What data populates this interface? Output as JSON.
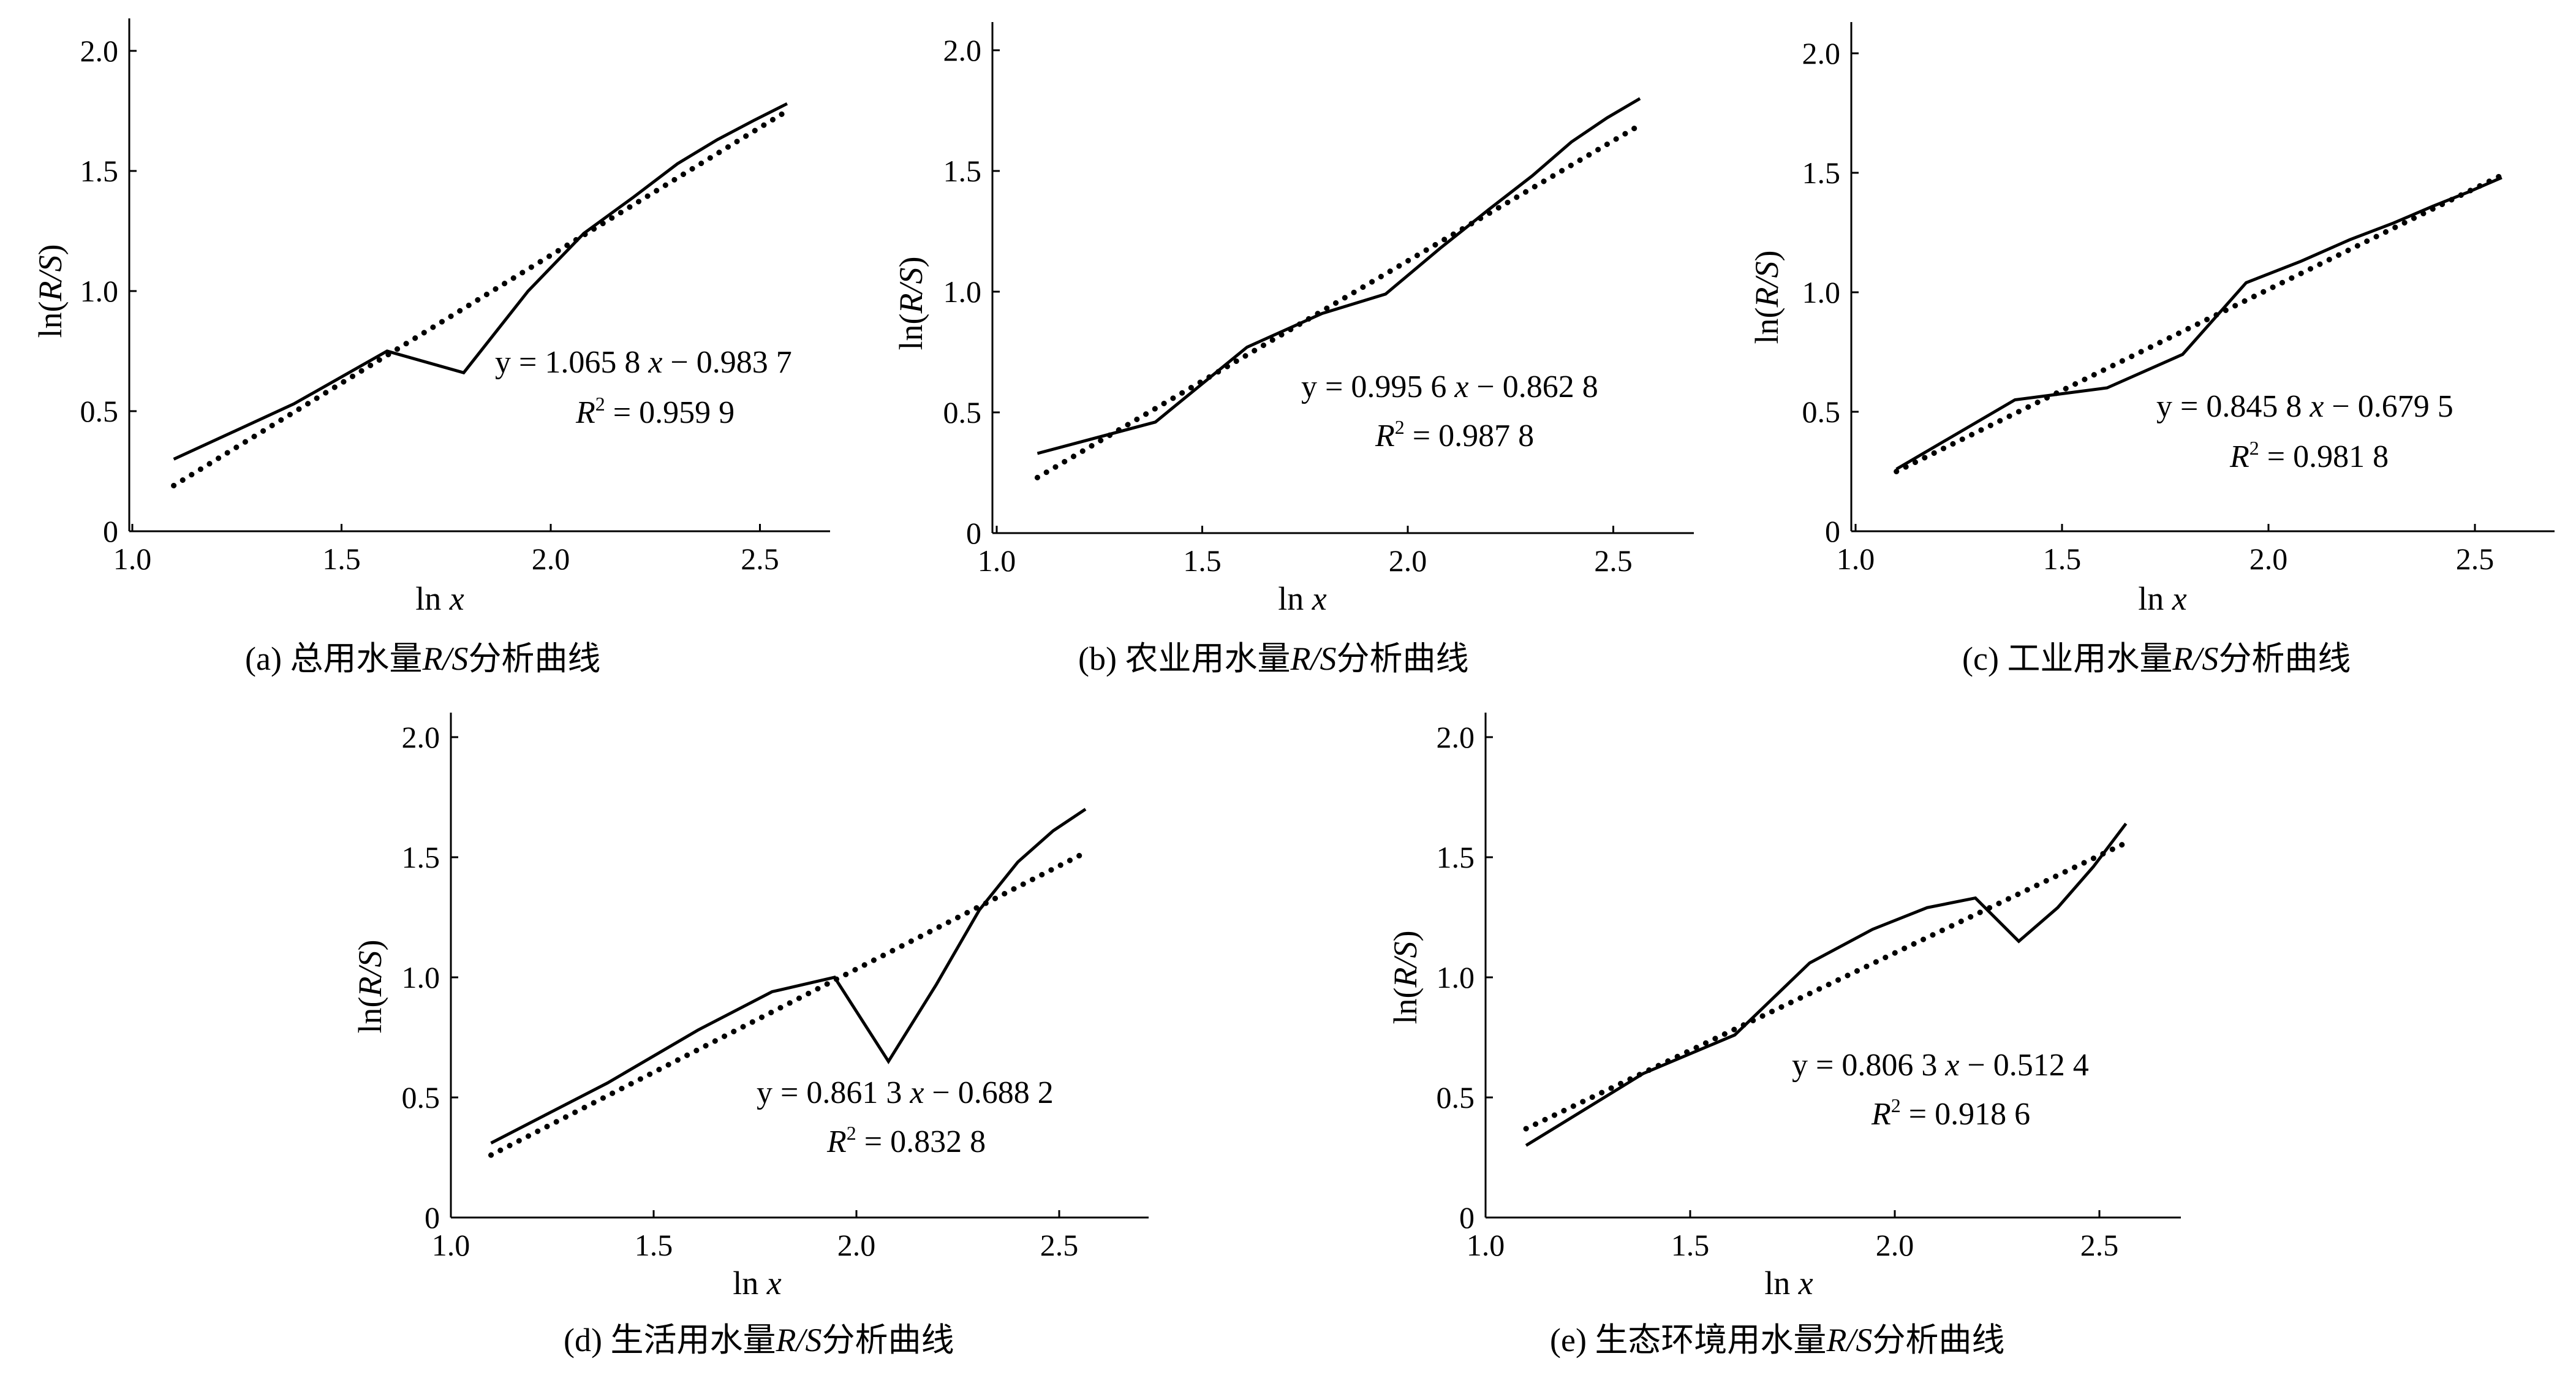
{
  "chart_data": [
    {
      "id": "a",
      "type": "line",
      "caption_prefix": "(a) ",
      "caption_main": "总用水量",
      "caption_italic": "R/S",
      "caption_suffix": "分析曲线",
      "xlabel_prefix": "ln ",
      "xlabel_var": "x",
      "ylabel_prefix": "ln(",
      "ylabel_var": "R/S",
      "ylabel_suffix": ")",
      "xlim": [
        1.0,
        2.7
      ],
      "ylim": [
        0,
        2.1
      ],
      "xticks": [
        {
          "v": 1.0,
          "label": "1.0"
        },
        {
          "v": 1.5,
          "label": "1.5"
        },
        {
          "v": 2.0,
          "label": "2.0"
        },
        {
          "v": 2.5,
          "label": "2.5"
        }
      ],
      "yticks": [
        {
          "v": 0,
          "label": "0"
        },
        {
          "v": 0.5,
          "label": "0.5"
        },
        {
          "v": 1.0,
          "label": "1.0"
        },
        {
          "v": 1.5,
          "label": "1.5"
        },
        {
          "v": 2.0,
          "label": "2.0"
        }
      ],
      "series": [
        {
          "style": "solid",
          "points": [
            [
              1.099,
              0.3
            ],
            [
              1.386,
              0.53
            ],
            [
              1.609,
              0.75
            ],
            [
              1.792,
              0.66
            ],
            [
              1.946,
              1.0
            ],
            [
              2.079,
              1.24
            ],
            [
              2.197,
              1.39
            ],
            [
              2.303,
              1.53
            ],
            [
              2.398,
              1.63
            ],
            [
              2.485,
              1.71
            ],
            [
              2.565,
              1.78
            ]
          ]
        },
        {
          "style": "dotted",
          "points": [
            [
              1.099,
              0.19
            ],
            [
              2.565,
              1.75
            ]
          ]
        }
      ],
      "equation_line1": "y = 1.065 8 ",
      "equation_var": "x",
      "equation_rest": " − 0.983 7",
      "r2_label": "R",
      "r2_sup": "2",
      "r2_value": " = 0.959 9"
    },
    {
      "id": "b",
      "type": "line",
      "caption_prefix": "(b)  ",
      "caption_main": "农业用水量",
      "caption_italic": "R/S",
      "caption_suffix": "分析曲线",
      "xlabel_prefix": "ln ",
      "xlabel_var": "x",
      "ylabel_prefix": "ln(",
      "ylabel_var": "R/S",
      "ylabel_suffix": ")",
      "xlim": [
        1.0,
        2.7
      ],
      "ylim": [
        0,
        2.1
      ],
      "xticks": [
        {
          "v": 1.0,
          "label": "1.0"
        },
        {
          "v": 1.5,
          "label": "1.5"
        },
        {
          "v": 2.0,
          "label": "2.0"
        },
        {
          "v": 2.5,
          "label": "2.5"
        }
      ],
      "yticks": [
        {
          "v": 0,
          "label": "0"
        },
        {
          "v": 0.5,
          "label": "0.5"
        },
        {
          "v": 1.0,
          "label": "1.0"
        },
        {
          "v": 1.5,
          "label": "1.5"
        },
        {
          "v": 2.0,
          "label": "2.0"
        }
      ],
      "series": [
        {
          "style": "solid",
          "points": [
            [
              1.099,
              0.33
            ],
            [
              1.386,
              0.46
            ],
            [
              1.609,
              0.77
            ],
            [
              1.792,
              0.91
            ],
            [
              1.946,
              0.99
            ],
            [
              2.079,
              1.18
            ],
            [
              2.197,
              1.34
            ],
            [
              2.303,
              1.48
            ],
            [
              2.398,
              1.62
            ],
            [
              2.485,
              1.72
            ],
            [
              2.565,
              1.8
            ]
          ]
        },
        {
          "style": "dotted",
          "points": [
            [
              1.099,
              0.23
            ],
            [
              2.565,
              1.69
            ]
          ]
        }
      ],
      "equation_line1": "y = 0.995 6 ",
      "equation_var": "x",
      "equation_rest": " − 0.862 8",
      "r2_label": "R",
      "r2_sup": "2",
      "r2_value": " = 0.987 8"
    },
    {
      "id": "c",
      "type": "line",
      "caption_prefix": "(c) ",
      "caption_main": "工业用水量",
      "caption_italic": "R/S",
      "caption_suffix": "分析曲线",
      "xlabel_prefix": "ln ",
      "xlabel_var": "x",
      "ylabel_prefix": "ln(",
      "ylabel_var": "R/S",
      "ylabel_suffix": ")",
      "xlim": [
        1.0,
        2.7
      ],
      "ylim": [
        0,
        2.1
      ],
      "xticks": [
        {
          "v": 1.0,
          "label": "1.0"
        },
        {
          "v": 1.5,
          "label": "1.5"
        },
        {
          "v": 2.0,
          "label": "2.0"
        },
        {
          "v": 2.5,
          "label": "2.5"
        }
      ],
      "yticks": [
        {
          "v": 0,
          "label": "0"
        },
        {
          "v": 0.5,
          "label": "0.5"
        },
        {
          "v": 1.0,
          "label": "1.0"
        },
        {
          "v": 1.5,
          "label": "1.5"
        },
        {
          "v": 2.0,
          "label": "2.0"
        }
      ],
      "series": [
        {
          "style": "solid",
          "points": [
            [
              1.099,
              0.26
            ],
            [
              1.386,
              0.55
            ],
            [
              1.609,
              0.6
            ],
            [
              1.792,
              0.74
            ],
            [
              1.946,
              1.04
            ],
            [
              2.079,
              1.13
            ],
            [
              2.197,
              1.22
            ],
            [
              2.303,
              1.29
            ],
            [
              2.398,
              1.36
            ],
            [
              2.485,
              1.42
            ],
            [
              2.565,
              1.48
            ]
          ]
        },
        {
          "style": "dotted",
          "points": [
            [
              1.099,
              0.25
            ],
            [
              2.565,
              1.49
            ]
          ]
        }
      ],
      "equation_line1": "y = 0.845 8 ",
      "equation_var": "x",
      "equation_rest": " − 0.679 5",
      "r2_label": "R",
      "r2_sup": "2",
      "r2_value": " = 0.981 8"
    },
    {
      "id": "d",
      "type": "line",
      "caption_prefix": "(d) ",
      "caption_main": "生活用水量",
      "caption_italic": "R/S",
      "caption_suffix": "分析曲线",
      "xlabel_prefix": "ln ",
      "xlabel_var": "x",
      "ylabel_prefix": "ln(",
      "ylabel_var": "R/S",
      "ylabel_suffix": ")",
      "xlim": [
        1.0,
        2.7
      ],
      "ylim": [
        0,
        2.1
      ],
      "xticks": [
        {
          "v": 1.0,
          "label": "1.0"
        },
        {
          "v": 1.5,
          "label": "1.5"
        },
        {
          "v": 2.0,
          "label": "2.0"
        },
        {
          "v": 2.5,
          "label": "2.5"
        }
      ],
      "yticks": [
        {
          "v": 0,
          "label": "0"
        },
        {
          "v": 0.5,
          "label": "0.5"
        },
        {
          "v": 1.0,
          "label": "1.0"
        },
        {
          "v": 1.5,
          "label": "1.5"
        },
        {
          "v": 2.0,
          "label": "2.0"
        }
      ],
      "series": [
        {
          "style": "solid",
          "points": [
            [
              1.099,
              0.31
            ],
            [
              1.386,
              0.56
            ],
            [
              1.609,
              0.78
            ],
            [
              1.792,
              0.94
            ],
            [
              1.946,
              1.0
            ],
            [
              2.079,
              0.65
            ],
            [
              2.197,
              0.97
            ],
            [
              2.303,
              1.28
            ],
            [
              2.398,
              1.48
            ],
            [
              2.485,
              1.61
            ],
            [
              2.565,
              1.7
            ]
          ]
        },
        {
          "style": "dotted",
          "points": [
            [
              1.099,
              0.26
            ],
            [
              2.565,
              1.52
            ]
          ]
        }
      ],
      "equation_line1": "y = 0.861 3 ",
      "equation_var": "x",
      "equation_rest": " − 0.688 2",
      "r2_label": "R",
      "r2_sup": "2",
      "r2_value": " = 0.832 8"
    },
    {
      "id": "e",
      "type": "line",
      "caption_prefix": "(e) ",
      "caption_main": "生态环境用水量",
      "caption_italic": "R/S",
      "caption_suffix": "分析曲线",
      "xlabel_prefix": "ln ",
      "xlabel_var": "x",
      "ylabel_prefix": "ln(",
      "ylabel_var": "R/S",
      "ylabel_suffix": ")",
      "xlim": [
        1.0,
        2.7
      ],
      "ylim": [
        0,
        2.1
      ],
      "xticks": [
        {
          "v": 1.0,
          "label": "1.0"
        },
        {
          "v": 1.5,
          "label": "1.5"
        },
        {
          "v": 2.0,
          "label": "2.0"
        },
        {
          "v": 2.5,
          "label": "2.5"
        }
      ],
      "yticks": [
        {
          "v": 0,
          "label": "0"
        },
        {
          "v": 0.5,
          "label": "0.5"
        },
        {
          "v": 1.0,
          "label": "1.0"
        },
        {
          "v": 1.5,
          "label": "1.5"
        },
        {
          "v": 2.0,
          "label": "2.0"
        }
      ],
      "series": [
        {
          "style": "solid",
          "points": [
            [
              1.099,
              0.3
            ],
            [
              1.386,
              0.6
            ],
            [
              1.609,
              0.76
            ],
            [
              1.792,
              1.06
            ],
            [
              1.946,
              1.2
            ],
            [
              2.079,
              1.29
            ],
            [
              2.197,
              1.33
            ],
            [
              2.303,
              1.15
            ],
            [
              2.398,
              1.29
            ],
            [
              2.485,
              1.46
            ],
            [
              2.565,
              1.64
            ]
          ]
        },
        {
          "style": "dotted",
          "points": [
            [
              1.099,
              0.37
            ],
            [
              2.565,
              1.56
            ]
          ]
        }
      ],
      "equation_line1": "y = 0.806 3 ",
      "equation_var": "x",
      "equation_rest": " − 0.512 4",
      "r2_label": "R",
      "r2_sup": "2",
      "r2_value": " = 0.918 6"
    }
  ]
}
